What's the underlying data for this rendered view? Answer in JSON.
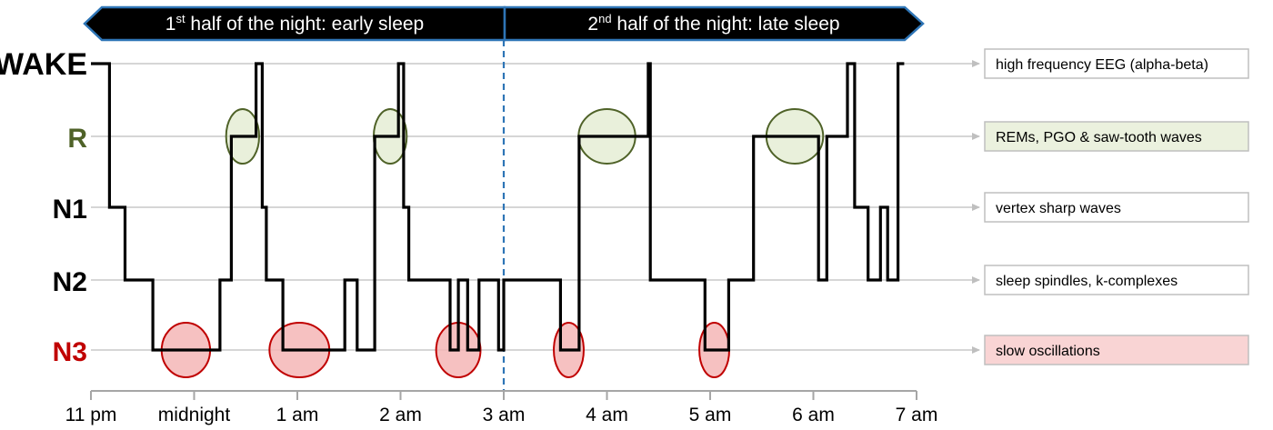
{
  "chart_data": {
    "type": "line",
    "title": "",
    "xlabel": "",
    "ylabel": "",
    "banners": [
      {
        "sup": "st",
        "prefix": "1",
        "text": " half of the night: early sleep"
      },
      {
        "sup": "nd",
        "prefix": "2",
        "text": " half of the night: late sleep"
      }
    ],
    "stages": [
      {
        "name": "WAKE",
        "level": 4,
        "color": "#000000"
      },
      {
        "name": "R",
        "level": 3,
        "color": "#4f6228"
      },
      {
        "name": "N1",
        "level": 2,
        "color": "#000000"
      },
      {
        "name": "N2",
        "level": 1,
        "color": "#000000"
      },
      {
        "name": "N3",
        "level": 0,
        "color": "#c00000"
      }
    ],
    "x_ticks": [
      "11 pm",
      "midnight",
      "1 am",
      "2 am",
      "3 am",
      "4 am",
      "5 am",
      "6 am",
      "7 am"
    ],
    "xlim": [
      0,
      8
    ],
    "midline_x": 4,
    "hypnogram": [
      [
        0.0,
        4
      ],
      [
        0.18,
        4
      ],
      [
        0.18,
        2
      ],
      [
        0.33,
        2
      ],
      [
        0.33,
        1
      ],
      [
        0.6,
        1
      ],
      [
        0.6,
        0
      ],
      [
        1.25,
        0
      ],
      [
        1.25,
        1
      ],
      [
        1.36,
        1
      ],
      [
        1.36,
        3
      ],
      [
        1.6,
        3
      ],
      [
        1.6,
        4
      ],
      [
        1.66,
        4
      ],
      [
        1.66,
        2
      ],
      [
        1.7,
        2
      ],
      [
        1.7,
        1
      ],
      [
        1.86,
        1
      ],
      [
        1.86,
        0
      ],
      [
        2.46,
        0
      ],
      [
        2.46,
        1
      ],
      [
        2.58,
        1
      ],
      [
        2.58,
        0
      ],
      [
        2.75,
        0
      ],
      [
        2.75,
        3
      ],
      [
        2.98,
        3
      ],
      [
        2.98,
        4
      ],
      [
        3.03,
        4
      ],
      [
        3.03,
        2
      ],
      [
        3.08,
        2
      ],
      [
        3.08,
        1
      ],
      [
        3.48,
        1
      ],
      [
        3.48,
        0
      ],
      [
        3.56,
        0
      ],
      [
        3.56,
        1
      ],
      [
        3.65,
        1
      ],
      [
        3.65,
        0
      ],
      [
        3.76,
        0
      ],
      [
        3.76,
        1
      ],
      [
        3.95,
        1
      ],
      [
        3.95,
        0
      ],
      [
        4.0,
        0
      ],
      [
        4.0,
        1
      ],
      [
        4.55,
        1
      ],
      [
        4.55,
        0
      ],
      [
        4.73,
        0
      ],
      [
        4.73,
        3
      ],
      [
        5.4,
        3
      ],
      [
        5.4,
        4
      ],
      [
        5.42,
        4
      ],
      [
        5.42,
        1
      ],
      [
        5.95,
        1
      ],
      [
        5.95,
        0
      ],
      [
        6.18,
        0
      ],
      [
        6.18,
        1
      ],
      [
        6.42,
        1
      ],
      [
        6.42,
        3
      ],
      [
        7.05,
        3
      ],
      [
        7.05,
        1
      ],
      [
        7.13,
        1
      ],
      [
        7.13,
        3
      ],
      [
        7.33,
        3
      ],
      [
        7.33,
        4
      ],
      [
        7.4,
        4
      ],
      [
        7.4,
        2
      ],
      [
        7.53,
        2
      ],
      [
        7.53,
        1
      ],
      [
        7.65,
        1
      ],
      [
        7.65,
        2
      ],
      [
        7.72,
        2
      ],
      [
        7.72,
        1
      ],
      [
        7.82,
        1
      ],
      [
        7.82,
        4
      ],
      [
        7.88,
        4
      ]
    ],
    "rem_ellipses": [
      [
        1.47,
        0.32
      ],
      [
        2.9,
        0.32
      ],
      [
        5.0,
        0.55
      ],
      [
        6.82,
        0.55
      ]
    ],
    "sws_ellipses": [
      [
        0.92,
        0.47
      ],
      [
        2.02,
        0.58
      ],
      [
        3.56,
        0.43
      ],
      [
        4.63,
        0.29
      ],
      [
        6.04,
        0.29
      ]
    ],
    "notes": [
      {
        "stage": "WAKE",
        "text": "high frequency EEG (alpha-beta)",
        "bg": "#ffffff"
      },
      {
        "stage": "R",
        "text": "REMs, PGO & saw-tooth waves",
        "bg": "#ebf1de"
      },
      {
        "stage": "N1",
        "text": "vertex sharp waves",
        "bg": "#ffffff"
      },
      {
        "stage": "N2",
        "text": "sleep spindles, k-complexes",
        "bg": "#ffffff"
      },
      {
        "stage": "N3",
        "text": "slow oscillations",
        "bg": "#f9d4d4"
      }
    ],
    "grid": true,
    "legend": "right"
  }
}
